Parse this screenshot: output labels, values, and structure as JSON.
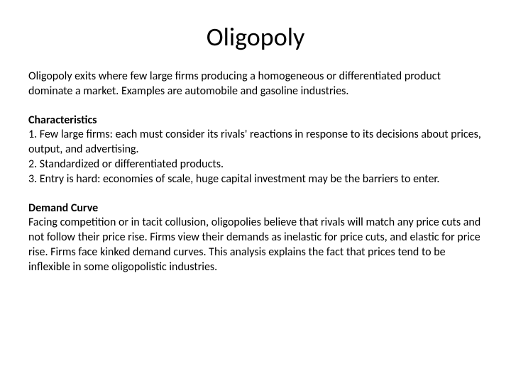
{
  "title": "Oligopoly",
  "intro": "Oligopoly exits where few large firms producing a homogeneous or differentiated product dominate a market. Examples are automobile and gasoline industries.",
  "characteristics": {
    "heading": "Characteristics",
    "item1": "1. Few large firms: each must consider its rivals' reactions in response to its decisions about prices, output, and advertising.",
    "item2": "2. Standardized or differentiated products.",
    "item3": "3. Entry is hard: economies of scale, huge capital investment may be the barriers to enter."
  },
  "demand": {
    "heading": "Demand Curve",
    "body": "Facing competition or in tacit collusion, oligopolies believe that rivals will match any price cuts and not follow their price rise. Firms view their demands as inelastic for price cuts, and elastic for price rise. Firms face kinked demand curves. This analysis explains the fact that prices tend to be inflexible in some oligopolistic industries."
  },
  "colors": {
    "background": "#ffffff",
    "text": "#000000"
  },
  "typography": {
    "title_fontsize": 36,
    "body_fontsize": 16,
    "font_family": "Calibri"
  }
}
